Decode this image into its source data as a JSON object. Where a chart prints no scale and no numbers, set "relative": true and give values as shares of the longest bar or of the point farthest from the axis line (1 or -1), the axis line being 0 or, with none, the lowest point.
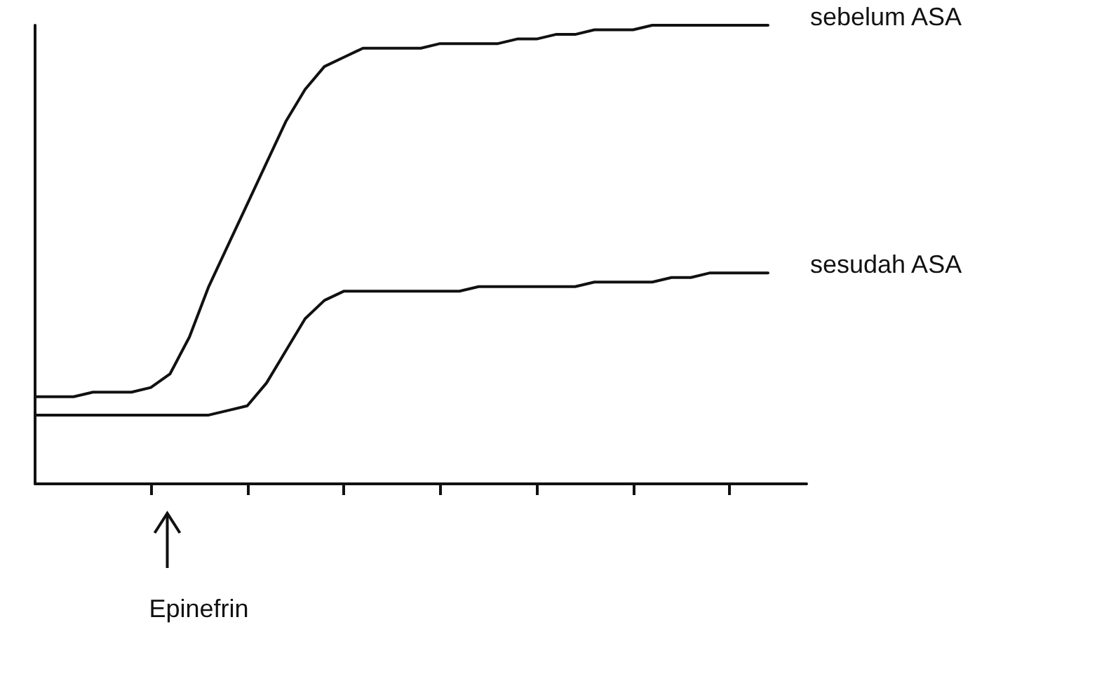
{
  "chart_data": {
    "type": "line",
    "relative": true,
    "grid": false,
    "marker": "none",
    "line_style": "solid",
    "categories": [
      null,
      null,
      null,
      null,
      null,
      null,
      null,
      null,
      null,
      null,
      null,
      null,
      null,
      null,
      null,
      null,
      null,
      null,
      null,
      null,
      null,
      null,
      null,
      null,
      null,
      null,
      null,
      null,
      null,
      null,
      null,
      null,
      null,
      null,
      null,
      null,
      null,
      null,
      null,
      null,
      null
    ],
    "series": [
      {
        "name": "sebelum ASA",
        "color": "#111111",
        "values": [
          0.19,
          0.19,
          0.19,
          0.2,
          0.2,
          0.2,
          0.21,
          0.24,
          0.32,
          0.43,
          0.52,
          0.61,
          0.7,
          0.79,
          0.86,
          0.91,
          0.93,
          0.95,
          0.95,
          0.95,
          0.95,
          0.96,
          0.96,
          0.96,
          0.96,
          0.97,
          0.97,
          0.98,
          0.98,
          0.99,
          0.99,
          0.99,
          1,
          1,
          1,
          1,
          1,
          1,
          1,
          null,
          null
        ]
      },
      {
        "name": "sesudah ASA",
        "color": "#111111",
        "values": [
          0.15,
          0.15,
          0.15,
          0.15,
          0.15,
          0.15,
          0.15,
          0.15,
          0.15,
          0.15,
          0.16,
          0.17,
          0.22,
          0.29,
          0.36,
          0.4,
          0.42,
          0.42,
          0.42,
          0.42,
          0.42,
          0.42,
          0.42,
          0.43,
          0.43,
          0.43,
          0.43,
          0.43,
          0.43,
          0.44,
          0.44,
          0.44,
          0.44,
          0.45,
          0.45,
          0.46,
          0.46,
          0.46,
          0.46,
          null,
          null
        ]
      }
    ],
    "annotations": [
      "Epinefrin"
    ]
  }
}
